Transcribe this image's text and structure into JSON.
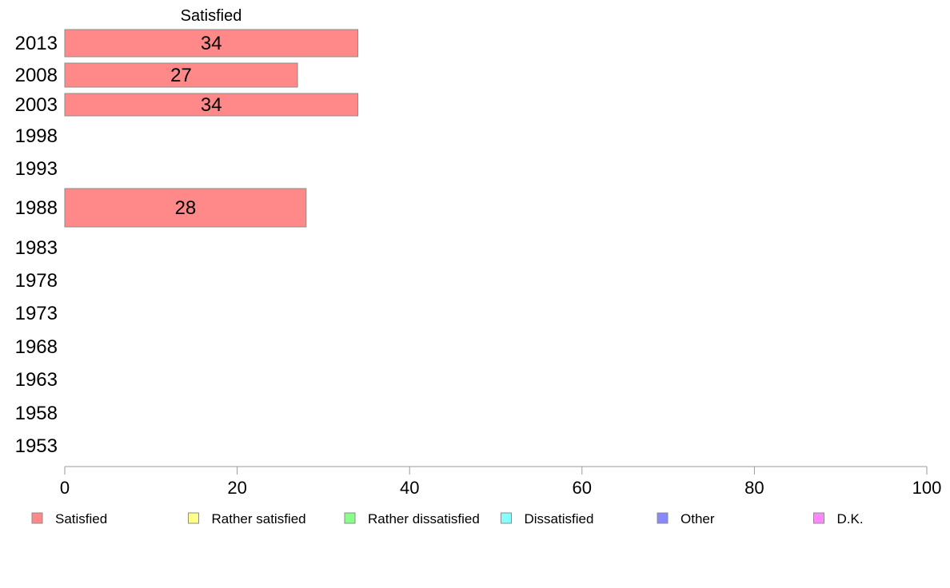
{
  "chart_data": {
    "type": "bar",
    "orientation": "horizontal",
    "stacked": true,
    "column_header": "Satisfied",
    "categories": [
      "2013",
      "2008",
      "2003",
      "1998",
      "1993",
      "1988",
      "1983",
      "1978",
      "1973",
      "1968",
      "1963",
      "1958",
      "1953"
    ],
    "series": [
      {
        "name": "Satisfied",
        "color": "#ff8888",
        "values": [
          34,
          27,
          34,
          null,
          null,
          28,
          null,
          null,
          null,
          null,
          null,
          null,
          null
        ]
      },
      {
        "name": "Rather satisfied",
        "color": "#ffff88",
        "values": [
          null,
          null,
          null,
          null,
          null,
          null,
          null,
          null,
          null,
          null,
          null,
          null,
          null
        ]
      },
      {
        "name": "Rather dissatisfied",
        "color": "#88ff88",
        "values": [
          null,
          null,
          null,
          null,
          null,
          null,
          null,
          null,
          null,
          null,
          null,
          null,
          null
        ]
      },
      {
        "name": "Dissatisfied",
        "color": "#88ffff",
        "values": [
          null,
          null,
          null,
          null,
          null,
          null,
          null,
          null,
          null,
          null,
          null,
          null,
          null
        ]
      },
      {
        "name": "Other",
        "color": "#8888ff",
        "values": [
          null,
          null,
          null,
          null,
          null,
          null,
          null,
          null,
          null,
          null,
          null,
          null,
          null
        ]
      },
      {
        "name": "D.K.",
        "color": "#ff88ff",
        "values": [
          null,
          null,
          null,
          null,
          null,
          null,
          null,
          null,
          null,
          null,
          null,
          null,
          null
        ]
      }
    ],
    "x_ticks": [
      "0",
      "20",
      "40",
      "60",
      "80",
      "100"
    ],
    "xlim": [
      0,
      100
    ],
    "grid": false,
    "legend_position": "bottom"
  }
}
